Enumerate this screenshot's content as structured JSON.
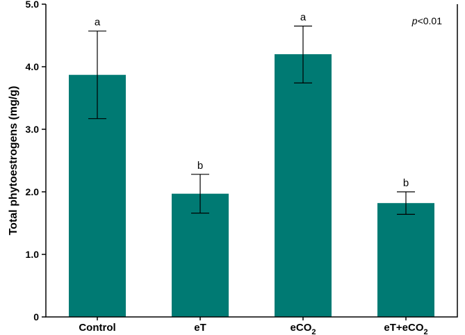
{
  "chart_data": {
    "type": "bar",
    "categories": [
      "Control",
      "eT",
      "eCO₂",
      "eT+eCO₂"
    ],
    "category_parts": [
      {
        "main": "Control",
        "sub": ""
      },
      {
        "main": "eT",
        "sub": ""
      },
      {
        "main": "eCO",
        "sub": "2"
      },
      {
        "main": "eT+eCO",
        "sub": "2"
      }
    ],
    "values": [
      3.87,
      1.97,
      4.2,
      1.82
    ],
    "error_upper": [
      4.57,
      2.28,
      4.65,
      2.0
    ],
    "error_lower": [
      3.17,
      1.66,
      3.74,
      1.64
    ],
    "significance_letters": [
      "a",
      "b",
      "a",
      "b"
    ],
    "annotation": {
      "italic": "p",
      "rest": "<0.01"
    },
    "xlabel": "",
    "ylabel": "Total phytoestrogens (mg/g)",
    "ylim": [
      0,
      5.0
    ],
    "yticks": [
      "0",
      "1.0",
      "2.0",
      "3.0",
      "4.0",
      "5.0"
    ],
    "bar_color": "#007a73",
    "grid": false,
    "legend": "none"
  }
}
